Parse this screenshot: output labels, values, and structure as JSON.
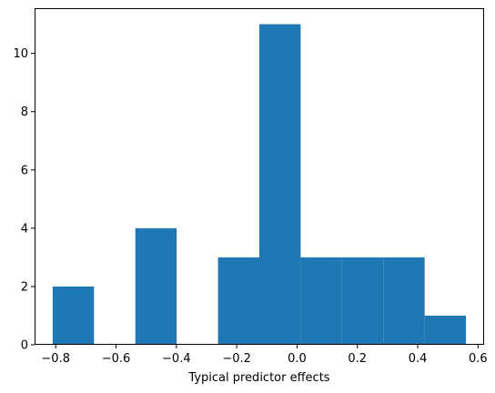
{
  "chart_data": {
    "type": "bar",
    "subtype": "histogram",
    "xlabel": "Typical predictor effects",
    "ylabel": "",
    "title": "",
    "bin_edges": [
      -0.81,
      -0.673,
      -0.536,
      -0.399,
      -0.262,
      -0.125,
      0.012,
      0.149,
      0.286,
      0.423,
      0.56
    ],
    "counts": [
      2,
      0,
      4,
      0,
      3,
      11,
      3,
      3,
      3,
      1
    ],
    "xlim": [
      -0.87,
      0.62
    ],
    "ylim": [
      0,
      11.55
    ],
    "xticks": [
      -0.8,
      -0.6,
      -0.4,
      -0.2,
      0.0,
      0.2,
      0.4,
      0.6
    ],
    "xtick_labels": [
      "−0.8",
      "−0.6",
      "−0.4",
      "−0.2",
      "0.0",
      "0.2",
      "0.4",
      "0.6"
    ],
    "yticks": [
      0,
      2,
      4,
      6,
      8,
      10
    ],
    "ytick_labels": [
      "0",
      "2",
      "4",
      "6",
      "8",
      "10"
    ],
    "bar_color": "#1f77b4",
    "grid": false,
    "legend": "none"
  }
}
